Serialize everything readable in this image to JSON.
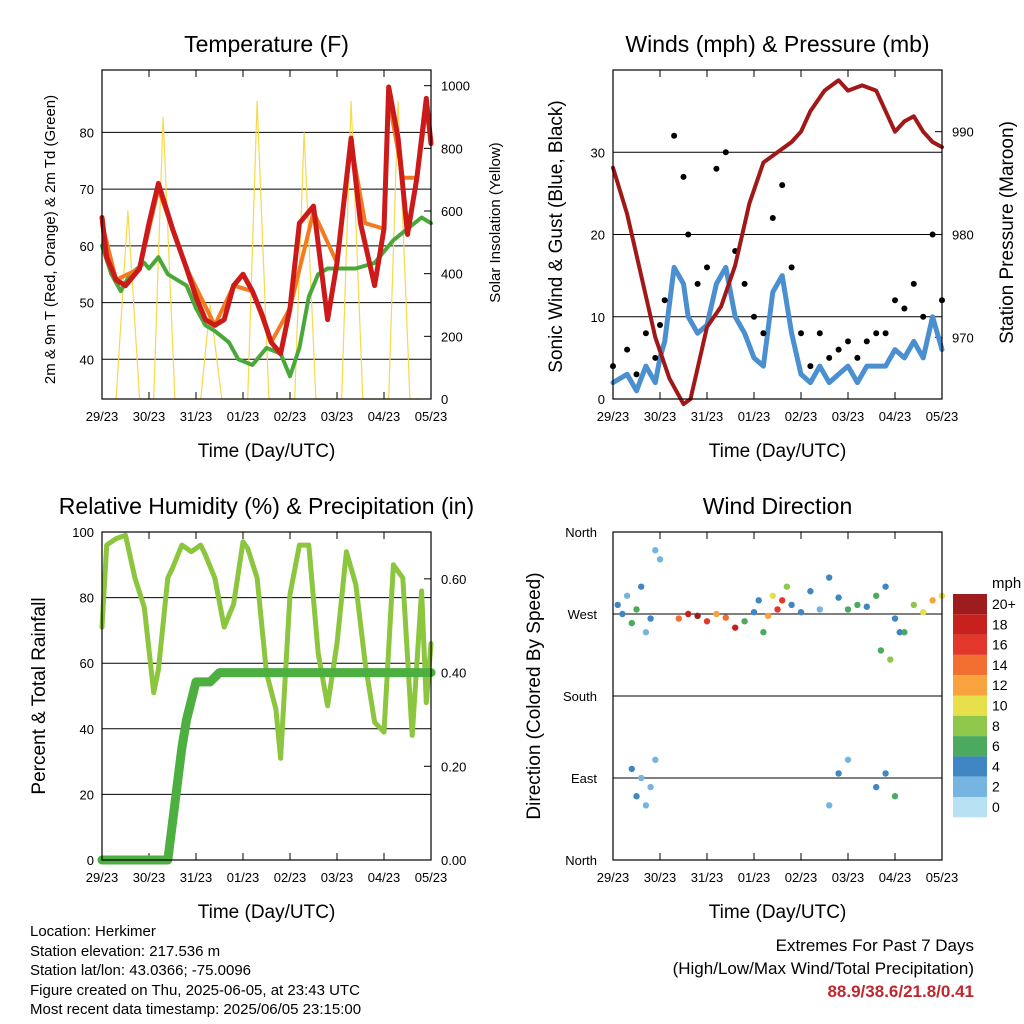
{
  "x_ticks": [
    "29/23",
    "30/23",
    "31/23",
    "01/23",
    "02/23",
    "03/23",
    "04/23",
    "05/23"
  ],
  "colors": {
    "temp2m": "#cc1a1a",
    "temp9m": "#f47a20",
    "dewpoint": "#4aa83a",
    "solar": "#f7d94c",
    "gust": "#000000",
    "wind": "#4a8fd0",
    "pressure": "#a01818",
    "rh": "#8cc63f",
    "precip": "#4caf3f",
    "extreme_text": "#c0272d"
  },
  "chart_data": [
    {
      "type": "line",
      "title": "Temperature (F)",
      "xlabel": "Time (Day/UTC)",
      "ylabel": "2m & 9m T (Red, Orange) & 2m Td (Green)",
      "y2label": "Solar Insolation (Yellow)",
      "ylim": [
        33,
        91
      ],
      "yticks": [
        40,
        50,
        60,
        70,
        80
      ],
      "y2lim": [
        0,
        1050
      ],
      "y2ticks": [
        0,
        200,
        400,
        600,
        800,
        1000
      ],
      "series": [
        {
          "key": "temp2m",
          "axis": "left",
          "x": [
            0,
            0.1,
            0.3,
            0.5,
            0.8,
            1.0,
            1.2,
            1.5,
            1.8,
            2.0,
            2.2,
            2.4,
            2.6,
            2.8,
            3.0,
            3.2,
            3.4,
            3.6,
            3.8,
            4.0,
            4.2,
            4.5,
            4.8,
            5.0,
            5.3,
            5.5,
            5.8,
            6.0,
            6.1,
            6.3,
            6.5,
            6.7,
            6.9,
            7.0
          ],
          "values": [
            65,
            58,
            54,
            53,
            56,
            64,
            71,
            63,
            56,
            51,
            47,
            46,
            47,
            53,
            55,
            52,
            48,
            43,
            41,
            49,
            64,
            67,
            47,
            57,
            79,
            64,
            53,
            63,
            88,
            79,
            62,
            72,
            86,
            78
          ]
        },
        {
          "key": "temp9m",
          "axis": "left",
          "x": [
            0,
            0.3,
            0.8,
            1.2,
            1.8,
            2.4,
            2.8,
            3.2,
            3.6,
            4.0,
            4.5,
            5.0,
            5.3,
            5.6,
            6.0,
            6.1,
            6.4,
            6.7,
            6.9,
            7.0
          ],
          "values": [
            64,
            54,
            56,
            70,
            56,
            46,
            53,
            52,
            43,
            49,
            66,
            57,
            78,
            64,
            63,
            86,
            72,
            72,
            84,
            79
          ]
        },
        {
          "key": "dewpoint",
          "axis": "left",
          "x": [
            0,
            0.2,
            0.4,
            0.6,
            0.9,
            1.0,
            1.2,
            1.4,
            1.6,
            1.8,
            2.0,
            2.2,
            2.4,
            2.7,
            2.9,
            3.2,
            3.5,
            3.8,
            4.0,
            4.2,
            4.4,
            4.6,
            4.8,
            5.0,
            5.4,
            5.8,
            6.0,
            6.2,
            6.5,
            6.8,
            7.0
          ],
          "values": [
            60,
            55,
            52,
            55,
            57,
            56,
            58,
            55,
            54,
            53,
            49,
            46,
            45,
            43,
            40,
            39,
            42,
            41,
            37,
            42,
            51,
            55,
            56,
            56,
            56,
            57,
            59,
            61,
            63,
            65,
            64
          ]
        },
        {
          "key": "solar",
          "axis": "right",
          "x": [
            0.3,
            0.55,
            0.8,
            1.1,
            1.3,
            1.55,
            1.8,
            2.1,
            2.3,
            2.55,
            2.8,
            3.1,
            3.3,
            3.55,
            3.8,
            4.1,
            4.3,
            4.55,
            4.8,
            5.1,
            5.3,
            5.55,
            5.8,
            6.1,
            6.3,
            6.55,
            6.8
          ],
          "values": [
            0,
            600,
            0,
            0,
            900,
            0,
            0,
            0,
            300,
            0,
            0,
            0,
            950,
            0,
            0,
            0,
            850,
            0,
            0,
            0,
            950,
            0,
            0,
            0,
            950,
            0,
            0
          ]
        }
      ]
    },
    {
      "type": "scatter",
      "title": "Winds (mph) & Pressure (mb)",
      "xlabel": "Time (Day/UTC)",
      "ylabel": "Sonic Wind & Gust (Blue, Black)",
      "y2label": "Station Pressure (Maroon)",
      "ylim": [
        0,
        40
      ],
      "yticks": [
        0,
        10,
        20,
        30
      ],
      "y2lim": [
        964,
        996
      ],
      "y2ticks": [
        970,
        980,
        990
      ],
      "series": [
        {
          "key": "gust",
          "axis": "left",
          "x": [
            0,
            0.3,
            0.5,
            0.7,
            0.9,
            1.0,
            1.1,
            1.3,
            1.5,
            1.6,
            1.8,
            2.0,
            2.2,
            2.4,
            2.6,
            2.8,
            3.0,
            3.2,
            3.4,
            3.6,
            3.8,
            4.0,
            4.2,
            4.4,
            4.6,
            4.8,
            5.0,
            5.2,
            5.4,
            5.6,
            5.8,
            6.0,
            6.2,
            6.4,
            6.6,
            6.8,
            7.0
          ],
          "values": [
            4,
            6,
            3,
            8,
            5,
            9,
            12,
            32,
            27,
            20,
            14,
            16,
            28,
            30,
            18,
            14,
            10,
            8,
            22,
            26,
            16,
            8,
            4,
            8,
            5,
            6,
            7,
            5,
            7,
            8,
            8,
            12,
            11,
            14,
            10,
            20,
            12
          ]
        },
        {
          "key": "wind",
          "axis": "left",
          "x": [
            0,
            0.3,
            0.5,
            0.7,
            0.9,
            1.0,
            1.1,
            1.3,
            1.5,
            1.6,
            1.8,
            2.0,
            2.2,
            2.4,
            2.6,
            2.8,
            3.0,
            3.2,
            3.4,
            3.6,
            3.8,
            4.0,
            4.2,
            4.4,
            4.6,
            4.8,
            5.0,
            5.2,
            5.4,
            5.6,
            5.8,
            6.0,
            6.2,
            6.4,
            6.6,
            6.8,
            7.0
          ],
          "values": [
            2,
            3,
            1,
            4,
            2,
            5,
            7,
            16,
            14,
            10,
            8,
            9,
            14,
            16,
            10,
            8,
            5,
            4,
            13,
            15,
            8,
            3,
            2,
            4,
            2,
            3,
            4,
            2,
            4,
            4,
            4,
            6,
            5,
            7,
            5,
            10,
            6
          ]
        },
        {
          "key": "pressure",
          "axis": "right",
          "x": [
            0,
            0.3,
            0.6,
            0.9,
            1.2,
            1.5,
            1.65,
            1.8,
            2.0,
            2.3,
            2.6,
            2.9,
            3.2,
            3.5,
            3.8,
            4.0,
            4.2,
            4.5,
            4.8,
            5.0,
            5.3,
            5.6,
            5.9,
            6.0,
            6.2,
            6.4,
            6.6,
            6.8,
            7.0
          ],
          "values": [
            986.5,
            982,
            976,
            970,
            966,
            963.5,
            964,
            967,
            971,
            973,
            977,
            983,
            987,
            988,
            989,
            990,
            992,
            994,
            995,
            994,
            994.5,
            994,
            991,
            990,
            991,
            991.5,
            990,
            989,
            988.5
          ]
        }
      ]
    },
    {
      "type": "line",
      "title": "Relative Humidity (%) & Precipitation (in)",
      "xlabel": "Time (Day/UTC)",
      "ylabel": "Percent & Total Rainfall",
      "ylim": [
        0,
        100
      ],
      "yticks": [
        0,
        20,
        40,
        60,
        80,
        100
      ],
      "y2lim": [
        0,
        0.7
      ],
      "y2ticks": [
        "0.00",
        "0.20",
        "0.40",
        "0.60"
      ],
      "series": [
        {
          "key": "rh",
          "axis": "left",
          "x": [
            0,
            0.1,
            0.3,
            0.5,
            0.7,
            0.9,
            1.0,
            1.1,
            1.2,
            1.4,
            1.5,
            1.7,
            1.9,
            2.1,
            2.2,
            2.4,
            2.6,
            2.8,
            3.0,
            3.1,
            3.3,
            3.5,
            3.7,
            3.8,
            4.0,
            4.2,
            4.4,
            4.6,
            4.8,
            5.0,
            5.2,
            5.4,
            5.6,
            5.8,
            6.0,
            6.2,
            6.4,
            6.6,
            6.8,
            6.9,
            7.0
          ],
          "values": [
            71,
            96,
            98,
            99,
            86,
            77,
            64,
            51,
            58,
            86,
            89,
            96,
            94,
            96,
            93,
            86,
            71,
            78,
            97,
            95,
            86,
            57,
            46,
            31,
            81,
            96,
            96,
            63,
            47,
            66,
            94,
            84,
            60,
            42,
            39,
            90,
            86,
            38,
            82,
            48,
            66
          ]
        },
        {
          "key": "precip",
          "axis": "right",
          "x": [
            0,
            1.4,
            1.5,
            1.7,
            1.8,
            2.0,
            2.3,
            2.5,
            2.6,
            3.0,
            3.5,
            4.0,
            5.0,
            6.0,
            7.0
          ],
          "values": [
            0,
            0,
            0.08,
            0.24,
            0.3,
            0.38,
            0.38,
            0.4,
            0.4,
            0.4,
            0.4,
            0.4,
            0.4,
            0.4,
            0.4
          ]
        }
      ]
    },
    {
      "type": "scatter",
      "title": "Wind Direction",
      "xlabel": "Time (Day/UTC)",
      "ylabel": "Direction (Colored By Speed)",
      "yticks": [
        "North",
        "West",
        "South",
        "East",
        "North"
      ],
      "legend": {
        "title": "mph",
        "labels": [
          "20+",
          "18",
          "16",
          "14",
          "12",
          "10",
          "8",
          "6",
          "4",
          "2",
          "0"
        ],
        "colors": [
          "#9e1b1e",
          "#c8201f",
          "#e2372a",
          "#f36e31",
          "#f9a33f",
          "#e6e04b",
          "#8fc74b",
          "#4caa5f",
          "#3f86c2",
          "#76b4e1",
          "#b8e1f4"
        ],
        "placement": "right"
      },
      "points": {
        "x": [
          0.1,
          0.2,
          0.3,
          0.4,
          0.5,
          0.6,
          0.7,
          0.8,
          0.9,
          1.0,
          0.4,
          0.6,
          0.8,
          0.5,
          0.7,
          0.9,
          1.4,
          1.6,
          1.8,
          2.0,
          2.2,
          2.4,
          2.6,
          2.8,
          3.0,
          3.1,
          3.2,
          3.3,
          3.4,
          3.5,
          3.6,
          3.7,
          3.8,
          4.0,
          4.2,
          4.4,
          4.6,
          4.8,
          5.0,
          5.2,
          5.4,
          5.6,
          5.8,
          6.0,
          6.2,
          6.4,
          6.6,
          6.8,
          7.0,
          4.6,
          4.8,
          5.0,
          5.6,
          5.8,
          6.0,
          5.7,
          5.9,
          6.1
        ],
        "dir": [
          280,
          270,
          290,
          260,
          275,
          300,
          250,
          265,
          340,
          330,
          100,
          90,
          80,
          70,
          60,
          110,
          265,
          270,
          268,
          262,
          270,
          266,
          255,
          262,
          272,
          285,
          250,
          268,
          290,
          275,
          285,
          300,
          280,
          272,
          295,
          275,
          310,
          288,
          275,
          280,
          278,
          290,
          300,
          265,
          250,
          280,
          272,
          285,
          290,
          60,
          95,
          110,
          80,
          95,
          70,
          230,
          220,
          250
        ],
        "speed": [
          3,
          4,
          2,
          6,
          5,
          3,
          2,
          4,
          1,
          2,
          3,
          2,
          1,
          3,
          2,
          1,
          14,
          17,
          19,
          16,
          12,
          14,
          18,
          5,
          4,
          3,
          6,
          12,
          10,
          16,
          15,
          8,
          3,
          4,
          3,
          2,
          4,
          3,
          5,
          6,
          4,
          5,
          3,
          4,
          6,
          8,
          10,
          12,
          9,
          2,
          3,
          2,
          3,
          4,
          5,
          6,
          8,
          3
        ]
      }
    }
  ],
  "info": {
    "location": "Location: Herkimer",
    "elevation": "Station elevation: 217.536 m",
    "latlon": "Station lat/lon: 43.0366; -75.0096",
    "created": "Figure created on Thu, 2025-06-05, at 23:43 UTC",
    "recent": "Most recent data timestamp: 2025/06/05 23:15:00"
  },
  "extremes": {
    "title": "Extremes For Past 7 Days",
    "subtitle": "(High/Low/Max Wind/Total Precipitation)",
    "values": "88.9/38.6/21.8/0.41"
  }
}
